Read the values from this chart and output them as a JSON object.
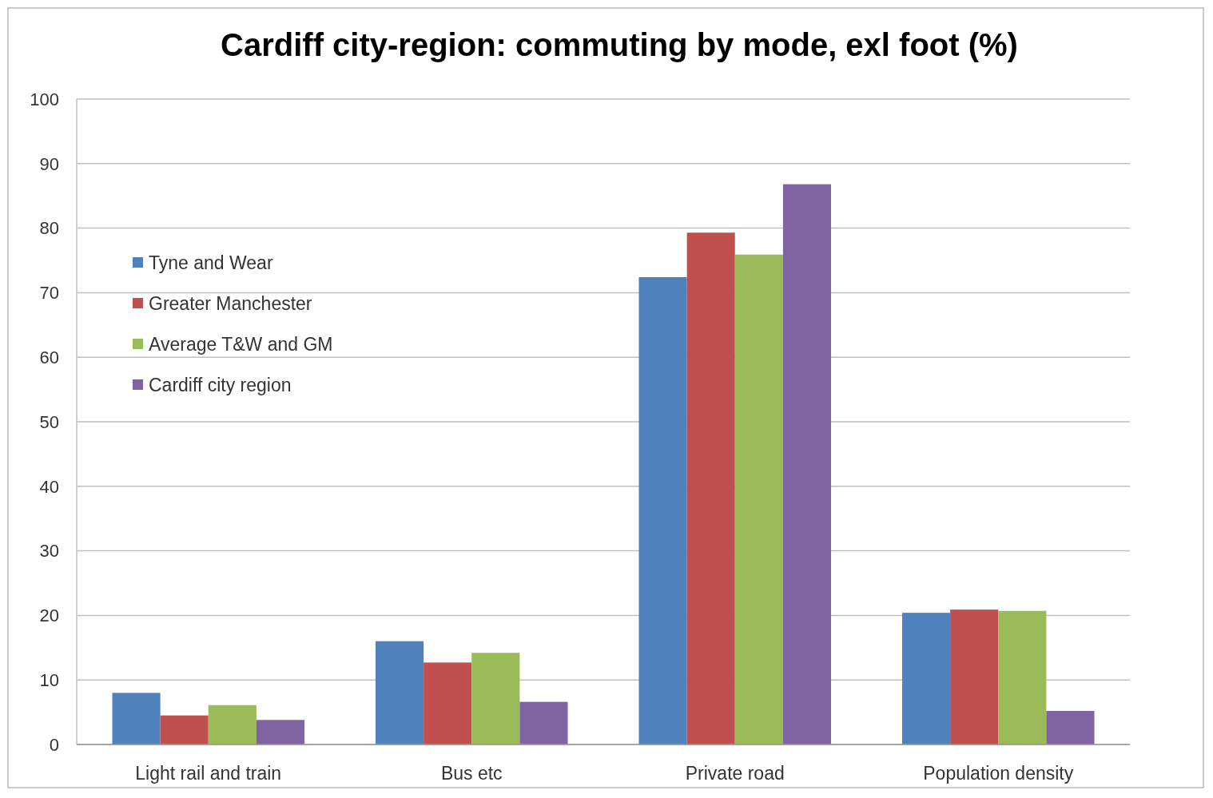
{
  "chart_data": {
    "type": "bar",
    "title": "Cardiff city-region:  commuting by mode, exl foot (%)",
    "categories": [
      "Light rail and train",
      "Bus etc",
      "Private road",
      "Population density"
    ],
    "series": [
      {
        "name": "Tyne and Wear",
        "color": "#4f81bd",
        "values": [
          8,
          16,
          72.4,
          20.4
        ]
      },
      {
        "name": "Greater Manchester",
        "color": "#c0504d",
        "values": [
          4.5,
          12.7,
          79.3,
          20.9
        ]
      },
      {
        "name": "Average T&W and GM",
        "color": "#9bbb59",
        "values": [
          6.1,
          14.2,
          75.9,
          20.7
        ]
      },
      {
        "name": "Cardiff city region",
        "color": "#8064a2",
        "values": [
          3.8,
          6.6,
          86.8,
          5.2
        ]
      }
    ],
    "ylim": [
      0,
      100
    ],
    "yticks": [
      0,
      10,
      20,
      30,
      40,
      50,
      60,
      70,
      80,
      90,
      100
    ],
    "grid": "y",
    "legend": "top left"
  }
}
